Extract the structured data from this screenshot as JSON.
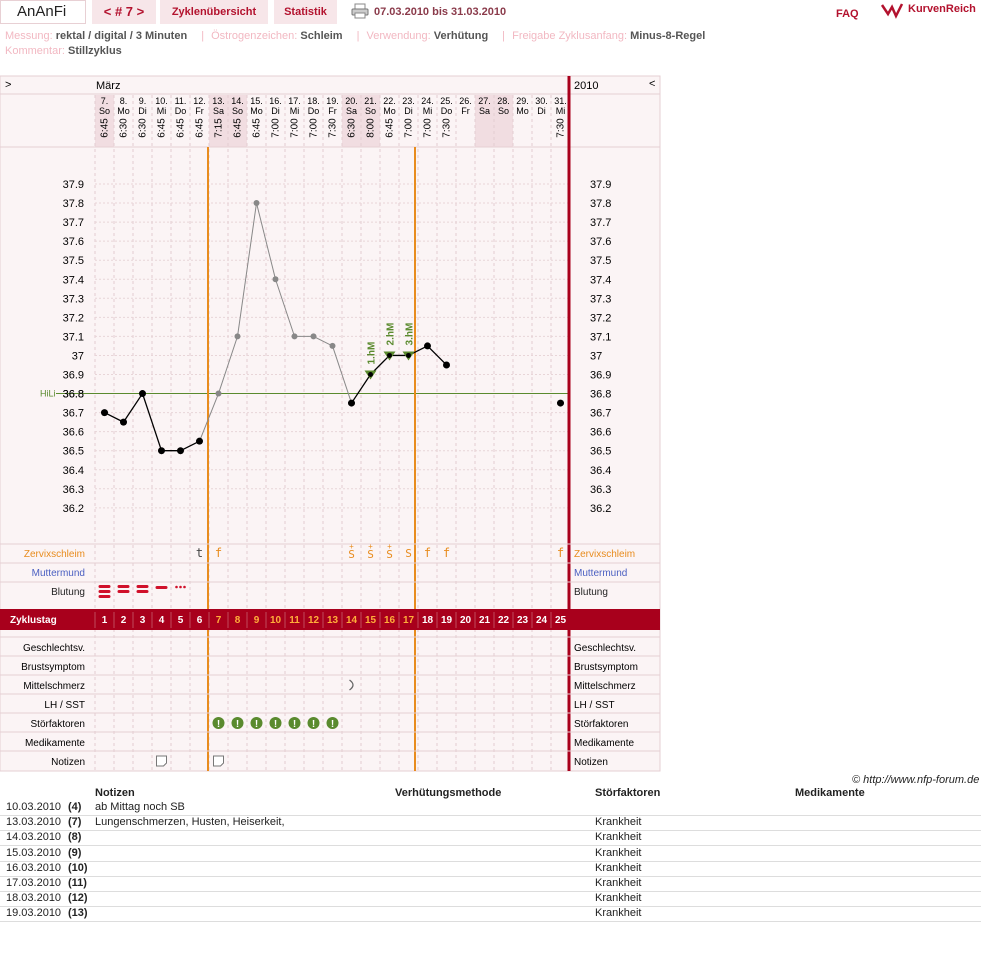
{
  "header": {
    "brand": "AnAnFi",
    "cycle_nav": "< # 7 >",
    "tab_overview": "Zyklenübersicht",
    "tab_stats": "Statistik",
    "date_range": "07.03.2010 bis 31.03.2010",
    "faq": "FAQ",
    "site_name": "KurvenReich"
  },
  "meta": {
    "messung_label": "Messung:",
    "messung_value": "rektal / digital / 3 Minuten",
    "oestrogen_label": "Östrogenzeichen:",
    "oestrogen_value": "Schleim",
    "verwendung_label": "Verwendung:",
    "verwendung_value": "Verhütung",
    "freigabe_label": "Freigabe Zyklusanfang:",
    "freigabe_value": "Minus-8-Regel",
    "kommentar_label": "Kommentar:",
    "kommentar_value": "Stillzyklus"
  },
  "chart_data": {
    "type": "line",
    "month": "März",
    "year": "2010",
    "nav_left": ">",
    "nav_right": "<",
    "days": [
      {
        "d": "7.",
        "w": "So",
        "t": "6:45",
        "cs": "",
        "cycle": 1,
        "temp": 36.7,
        "bl": "heavy"
      },
      {
        "d": "8.",
        "w": "Mo",
        "t": "6:30",
        "cs": "",
        "cycle": 2,
        "temp": 36.65,
        "bl": "heavy"
      },
      {
        "d": "9.",
        "w": "Di",
        "t": "6:30",
        "cs": "",
        "cycle": 3,
        "temp": 36.8,
        "bl": "heavy"
      },
      {
        "d": "10.",
        "w": "Mi",
        "t": "6:45",
        "cs": "",
        "cycle": 4,
        "temp": 36.5,
        "bl": "medium",
        "note": true
      },
      {
        "d": "11.",
        "w": "Do",
        "t": "6:45",
        "cs": "",
        "cycle": 5,
        "temp": 36.5,
        "bl": "spot"
      },
      {
        "d": "12.",
        "w": "Fr",
        "t": "6:45",
        "cs": "t",
        "cycle": 6,
        "temp": 36.55
      },
      {
        "d": "13.",
        "w": "Sa",
        "t": "7:15",
        "cs": "f",
        "cycle": 7,
        "temp": 36.8,
        "stor": true,
        "note": true
      },
      {
        "d": "14.",
        "w": "So",
        "t": "6:45",
        "cs": "",
        "cycle": 8,
        "temp": 37.1,
        "stor": true
      },
      {
        "d": "15.",
        "w": "Mo",
        "t": "6:45",
        "cs": "",
        "cycle": 9,
        "temp": 37.8,
        "stor": true
      },
      {
        "d": "16.",
        "w": "Di",
        "t": "7:00",
        "cs": "",
        "cycle": 10,
        "temp": 37.4,
        "stor": true
      },
      {
        "d": "17.",
        "w": "Mi",
        "t": "7:00",
        "cs": "",
        "cycle": 11,
        "temp": 37.1,
        "stor": true
      },
      {
        "d": "18.",
        "w": "Do",
        "t": "7:00",
        "cs": "",
        "cycle": 12,
        "temp": 37.1,
        "stor": true
      },
      {
        "d": "19.",
        "w": "Fr",
        "t": "7:30",
        "cs": "",
        "cycle": 13,
        "temp": 37.05,
        "stor": true
      },
      {
        "d": "20.",
        "w": "Sa",
        "t": "6:30",
        "cs": "S+",
        "cycle": 14,
        "temp": 36.75,
        "mittel": true
      },
      {
        "d": "21.",
        "w": "So",
        "t": "8:00",
        "cs": "S+",
        "cycle": 15,
        "temp": 36.9,
        "hm": "1.hM"
      },
      {
        "d": "22.",
        "w": "Mo",
        "t": "6:45",
        "cs": "S+",
        "cycle": 16,
        "temp": 37.0,
        "hm": "2.hM"
      },
      {
        "d": "23.",
        "w": "Di",
        "t": "7:00",
        "cs": "S",
        "cycle": 17,
        "temp": 37.0,
        "hm": "3.hM"
      },
      {
        "d": "24.",
        "w": "Mi",
        "t": "7:00",
        "cs": "f",
        "cycle": 18,
        "temp": 37.05
      },
      {
        "d": "25.",
        "w": "Do",
        "t": "7:30",
        "cs": "f",
        "cycle": 19,
        "temp": 36.95
      },
      {
        "d": "26.",
        "w": "Fr",
        "t": "",
        "cs": "",
        "cycle": 20
      },
      {
        "d": "27.",
        "w": "Sa",
        "t": "",
        "cs": "",
        "cycle": 21
      },
      {
        "d": "28.",
        "w": "So",
        "t": "",
        "cs": "",
        "cycle": 22
      },
      {
        "d": "29.",
        "w": "Mo",
        "t": "",
        "cs": "",
        "cycle": 23
      },
      {
        "d": "30.",
        "w": "Di",
        "t": "",
        "cs": "",
        "cycle": 24
      },
      {
        "d": "31.",
        "w": "Mi",
        "t": "7:30",
        "cs": "f",
        "cycle": 25,
        "temp": 36.75
      }
    ],
    "y_ticks": [
      "37.9",
      "37.8",
      "37.7",
      "37.6",
      "37.5",
      "37.4",
      "37.3",
      "37.2",
      "37.1",
      "37",
      "36.9",
      "36.8",
      "36.7",
      "36.6",
      "36.5",
      "36.4",
      "36.3",
      "36.2"
    ],
    "ylim": [
      36.1,
      38.0
    ],
    "hili_label": "HiLi",
    "hili_value": 36.8,
    "row_labels": {
      "zervix": "Zervixschleim",
      "muttermund": "Muttermund",
      "blutung": "Blutung",
      "zyklustag": "Zyklustag",
      "gv": "Geschlechtsv.",
      "brust": "Brustsymptom",
      "mittel": "Mittelschmerz",
      "lh": "LH / SST",
      "stoer": "Störfaktoren",
      "medi": "Medikamente",
      "notizen": "Notizen"
    },
    "colors": {
      "accent": "#a8001c",
      "orange": "#e88c1e",
      "green": "#5a8a2e",
      "muttermund": "#4a5fc1"
    }
  },
  "notes": {
    "copyright": "© http://www.nfp-forum.de",
    "headers": [
      "Notizen",
      "Verhütungsmethode",
      "Störfaktoren",
      "Medikamente"
    ],
    "rows": [
      {
        "date": "10.03.2010",
        "day": "(4)",
        "note": "ab Mittag noch SB",
        "stor": ""
      },
      {
        "date": "13.03.2010",
        "day": "(7)",
        "note": "Lungenschmerzen, Husten, Heiserkeit,",
        "stor": "Krankheit"
      },
      {
        "date": "14.03.2010",
        "day": "(8)",
        "note": "",
        "stor": "Krankheit"
      },
      {
        "date": "15.03.2010",
        "day": "(9)",
        "note": "",
        "stor": "Krankheit"
      },
      {
        "date": "16.03.2010",
        "day": "(10)",
        "note": "",
        "stor": "Krankheit"
      },
      {
        "date": "17.03.2010",
        "day": "(11)",
        "note": "",
        "stor": "Krankheit"
      },
      {
        "date": "18.03.2010",
        "day": "(12)",
        "note": "",
        "stor": "Krankheit"
      },
      {
        "date": "19.03.2010",
        "day": "(13)",
        "note": "",
        "stor": "Krankheit"
      }
    ]
  }
}
